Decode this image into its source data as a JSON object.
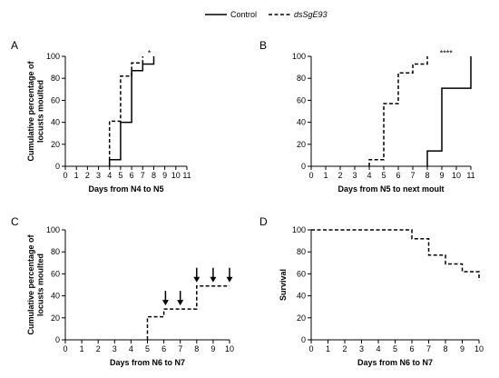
{
  "legend": {
    "entries": [
      {
        "label": "Control",
        "style": "solid"
      },
      {
        "label": "dsSgE93",
        "style": "dashed",
        "italic": true
      }
    ]
  },
  "chart_data": [
    {
      "panel": "A",
      "type": "line",
      "step": true,
      "xlabel": "Days from N4 to N5",
      "ylabel": "Cumulative percentage of locusts moulted",
      "xlim": [
        0,
        11
      ],
      "ylim": [
        0,
        100
      ],
      "x_ticks": [
        0,
        1,
        2,
        3,
        4,
        5,
        6,
        7,
        8,
        9,
        10,
        11
      ],
      "y_ticks": [
        0,
        20,
        40,
        60,
        80,
        100
      ],
      "annotation": "*",
      "annotation_x": 7.6,
      "annotation_y": 103,
      "series": [
        {
          "name": "Control",
          "style": "solid",
          "points": [
            [
              4,
              0
            ],
            [
              4,
              6
            ],
            [
              5,
              6
            ],
            [
              5,
              40
            ],
            [
              6,
              40
            ],
            [
              6,
              87
            ],
            [
              7,
              87
            ],
            [
              7,
              93
            ],
            [
              8,
              93
            ],
            [
              8,
              100
            ]
          ]
        },
        {
          "name": "dsSgE93",
          "style": "dashed",
          "points": [
            [
              4,
              0
            ],
            [
              4,
              41
            ],
            [
              5,
              41
            ],
            [
              5,
              82
            ],
            [
              6,
              82
            ],
            [
              6,
              94
            ],
            [
              7,
              94
            ],
            [
              7,
              100
            ]
          ]
        }
      ]
    },
    {
      "panel": "B",
      "type": "line",
      "step": true,
      "xlabel": "Days from N5 to next moult",
      "ylabel": "",
      "xlim": [
        0,
        11
      ],
      "ylim": [
        0,
        100
      ],
      "x_ticks": [
        0,
        1,
        2,
        3,
        4,
        5,
        6,
        7,
        8,
        9,
        10,
        11
      ],
      "y_ticks": [
        0,
        20,
        40,
        60,
        80,
        100
      ],
      "annotation": "****",
      "annotation_x": 9.3,
      "annotation_y": 103,
      "series": [
        {
          "name": "Control",
          "style": "solid",
          "points": [
            [
              8,
              0
            ],
            [
              8,
              14
            ],
            [
              9,
              14
            ],
            [
              9,
              71
            ],
            [
              11,
              71
            ],
            [
              11,
              100
            ]
          ]
        },
        {
          "name": "dsSgE93",
          "style": "dashed",
          "points": [
            [
              4,
              0
            ],
            [
              4,
              6
            ],
            [
              5,
              6
            ],
            [
              5,
              57
            ],
            [
              6,
              57
            ],
            [
              6,
              85
            ],
            [
              7,
              85
            ],
            [
              7,
              93
            ],
            [
              8,
              93
            ],
            [
              8,
              100
            ]
          ]
        }
      ]
    },
    {
      "panel": "C",
      "type": "line",
      "step": true,
      "xlabel": "Days from N6 to N7",
      "ylabel": "Cumulative percentage of locusts moulted",
      "xlim": [
        0,
        10
      ],
      "ylim": [
        0,
        100
      ],
      "x_ticks": [
        0,
        1,
        2,
        3,
        4,
        5,
        6,
        7,
        8,
        9,
        10
      ],
      "y_ticks": [
        0,
        20,
        40,
        60,
        80,
        100
      ],
      "arrows_at_x": [
        6.1,
        7,
        8,
        9,
        10
      ],
      "series": [
        {
          "name": "dsSgE93",
          "style": "dashed",
          "points": [
            [
              5,
              0
            ],
            [
              5,
              21
            ],
            [
              6,
              21
            ],
            [
              6,
              28
            ],
            [
              8,
              28
            ],
            [
              8,
              49
            ],
            [
              10,
              49
            ]
          ]
        }
      ]
    },
    {
      "panel": "D",
      "type": "line",
      "step": true,
      "xlabel": "Days from N6 to N7",
      "ylabel": "Survival",
      "xlim": [
        0,
        10
      ],
      "ylim": [
        0,
        100
      ],
      "x_ticks": [
        0,
        1,
        2,
        3,
        4,
        5,
        6,
        7,
        8,
        9,
        10
      ],
      "y_ticks": [
        0,
        20,
        40,
        60,
        80,
        100
      ],
      "series": [
        {
          "name": "dsSgE93",
          "style": "dashed",
          "points": [
            [
              0,
              100
            ],
            [
              6,
              100
            ],
            [
              6,
              92
            ],
            [
              7,
              92
            ],
            [
              7,
              77
            ],
            [
              8,
              77
            ],
            [
              8,
              69
            ],
            [
              9,
              69
            ],
            [
              9,
              62
            ],
            [
              10,
              62
            ],
            [
              10,
              54
            ]
          ]
        }
      ]
    }
  ]
}
